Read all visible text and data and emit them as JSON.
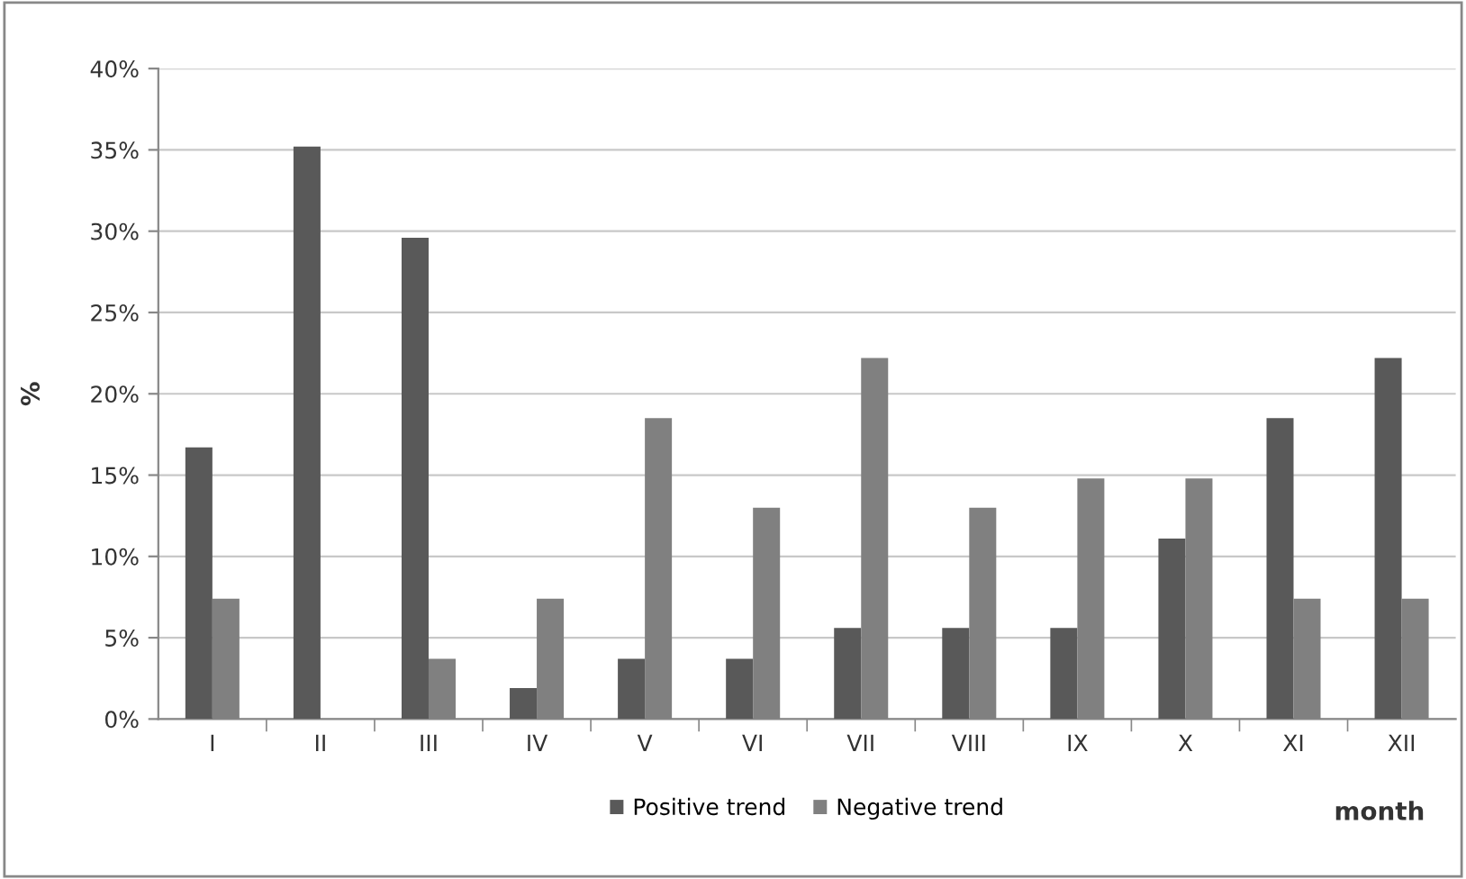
{
  "chart_data": {
    "type": "bar",
    "xlabel": "month",
    "ylabel": "%",
    "categories": [
      "I",
      "II",
      "III",
      "IV",
      "V",
      "VI",
      "VII",
      "VIII",
      "IX",
      "X",
      "XI",
      "XII"
    ],
    "series": [
      {
        "name": "Positive trend",
        "color": "#595959",
        "values": [
          16.7,
          35.2,
          29.6,
          1.9,
          3.7,
          3.7,
          5.6,
          5.6,
          5.6,
          11.1,
          18.5,
          22.2
        ]
      },
      {
        "name": "Negative trend",
        "color": "#808080",
        "values": [
          7.4,
          0,
          3.7,
          7.4,
          18.5,
          13.0,
          22.2,
          13.0,
          14.8,
          14.8,
          7.4,
          7.4
        ]
      }
    ],
    "ylim": [
      0,
      40
    ],
    "yticks": [
      {
        "value": 0,
        "label": "0%"
      },
      {
        "value": 5,
        "label": "5%"
      },
      {
        "value": 10,
        "label": "10%"
      },
      {
        "value": 15,
        "label": "15%"
      },
      {
        "value": 20,
        "label": "20%"
      },
      {
        "value": 25,
        "label": "25%"
      },
      {
        "value": 30,
        "label": "30%"
      },
      {
        "value": 35,
        "label": "35%"
      },
      {
        "value": 40,
        "label": "40%"
      }
    ],
    "grid": "y",
    "legend": "bottom"
  }
}
